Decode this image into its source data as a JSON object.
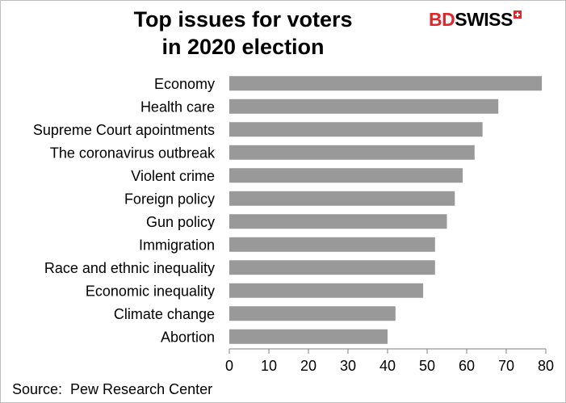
{
  "logo": {
    "text_red": "BD",
    "text_black": "SWISS"
  },
  "chart_data": {
    "type": "bar",
    "orientation": "horizontal",
    "title_lines": [
      "Top issues for voters",
      "in 2020 election"
    ],
    "categories": [
      "Economy",
      "Health care",
      "Supreme Court apointments",
      "The coronavirus outbreak",
      "Violent crime",
      "Foreign policy",
      "Gun policy",
      "Immigration",
      "Race and ethnic inequality",
      "Economic inequality",
      "Climate change",
      "Abortion"
    ],
    "values": [
      79,
      68,
      64,
      62,
      59,
      57,
      55,
      52,
      52,
      49,
      42,
      40
    ],
    "xlim": [
      0,
      80
    ],
    "xticks": [
      0,
      10,
      20,
      30,
      40,
      50,
      60,
      70,
      80
    ],
    "bar_color": "#999999",
    "grid": false,
    "legend": "none"
  },
  "source": "Source:  Pew Research Center"
}
